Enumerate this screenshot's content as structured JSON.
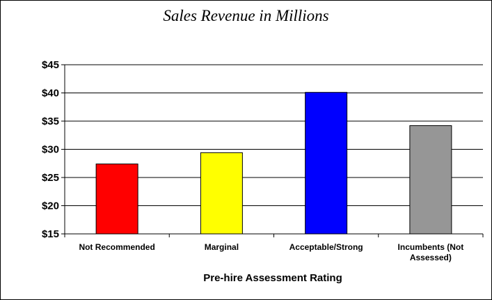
{
  "chart_data": {
    "type": "bar",
    "title": "Sales Revenue in Millions",
    "xlabel": "Pre-hire Assessment Rating",
    "ylabel": "",
    "categories": [
      [
        "Not Recommended"
      ],
      [
        "Marginal"
      ],
      [
        "Acceptable/Strong"
      ],
      [
        "Incumbents (Not",
        "Assessed)"
      ]
    ],
    "values": [
      27.4,
      29.4,
      40.1,
      34.2
    ],
    "colors": [
      "#ff0000",
      "#ffff00",
      "#0000ff",
      "#969696"
    ],
    "ylim": [
      15,
      45
    ],
    "yticks": [
      15,
      20,
      25,
      30,
      35,
      40,
      45
    ],
    "ytick_labels": [
      "$15",
      "$20",
      "$25",
      "$30",
      "$35",
      "$40",
      "$45"
    ],
    "grid": true,
    "legend": "none"
  }
}
